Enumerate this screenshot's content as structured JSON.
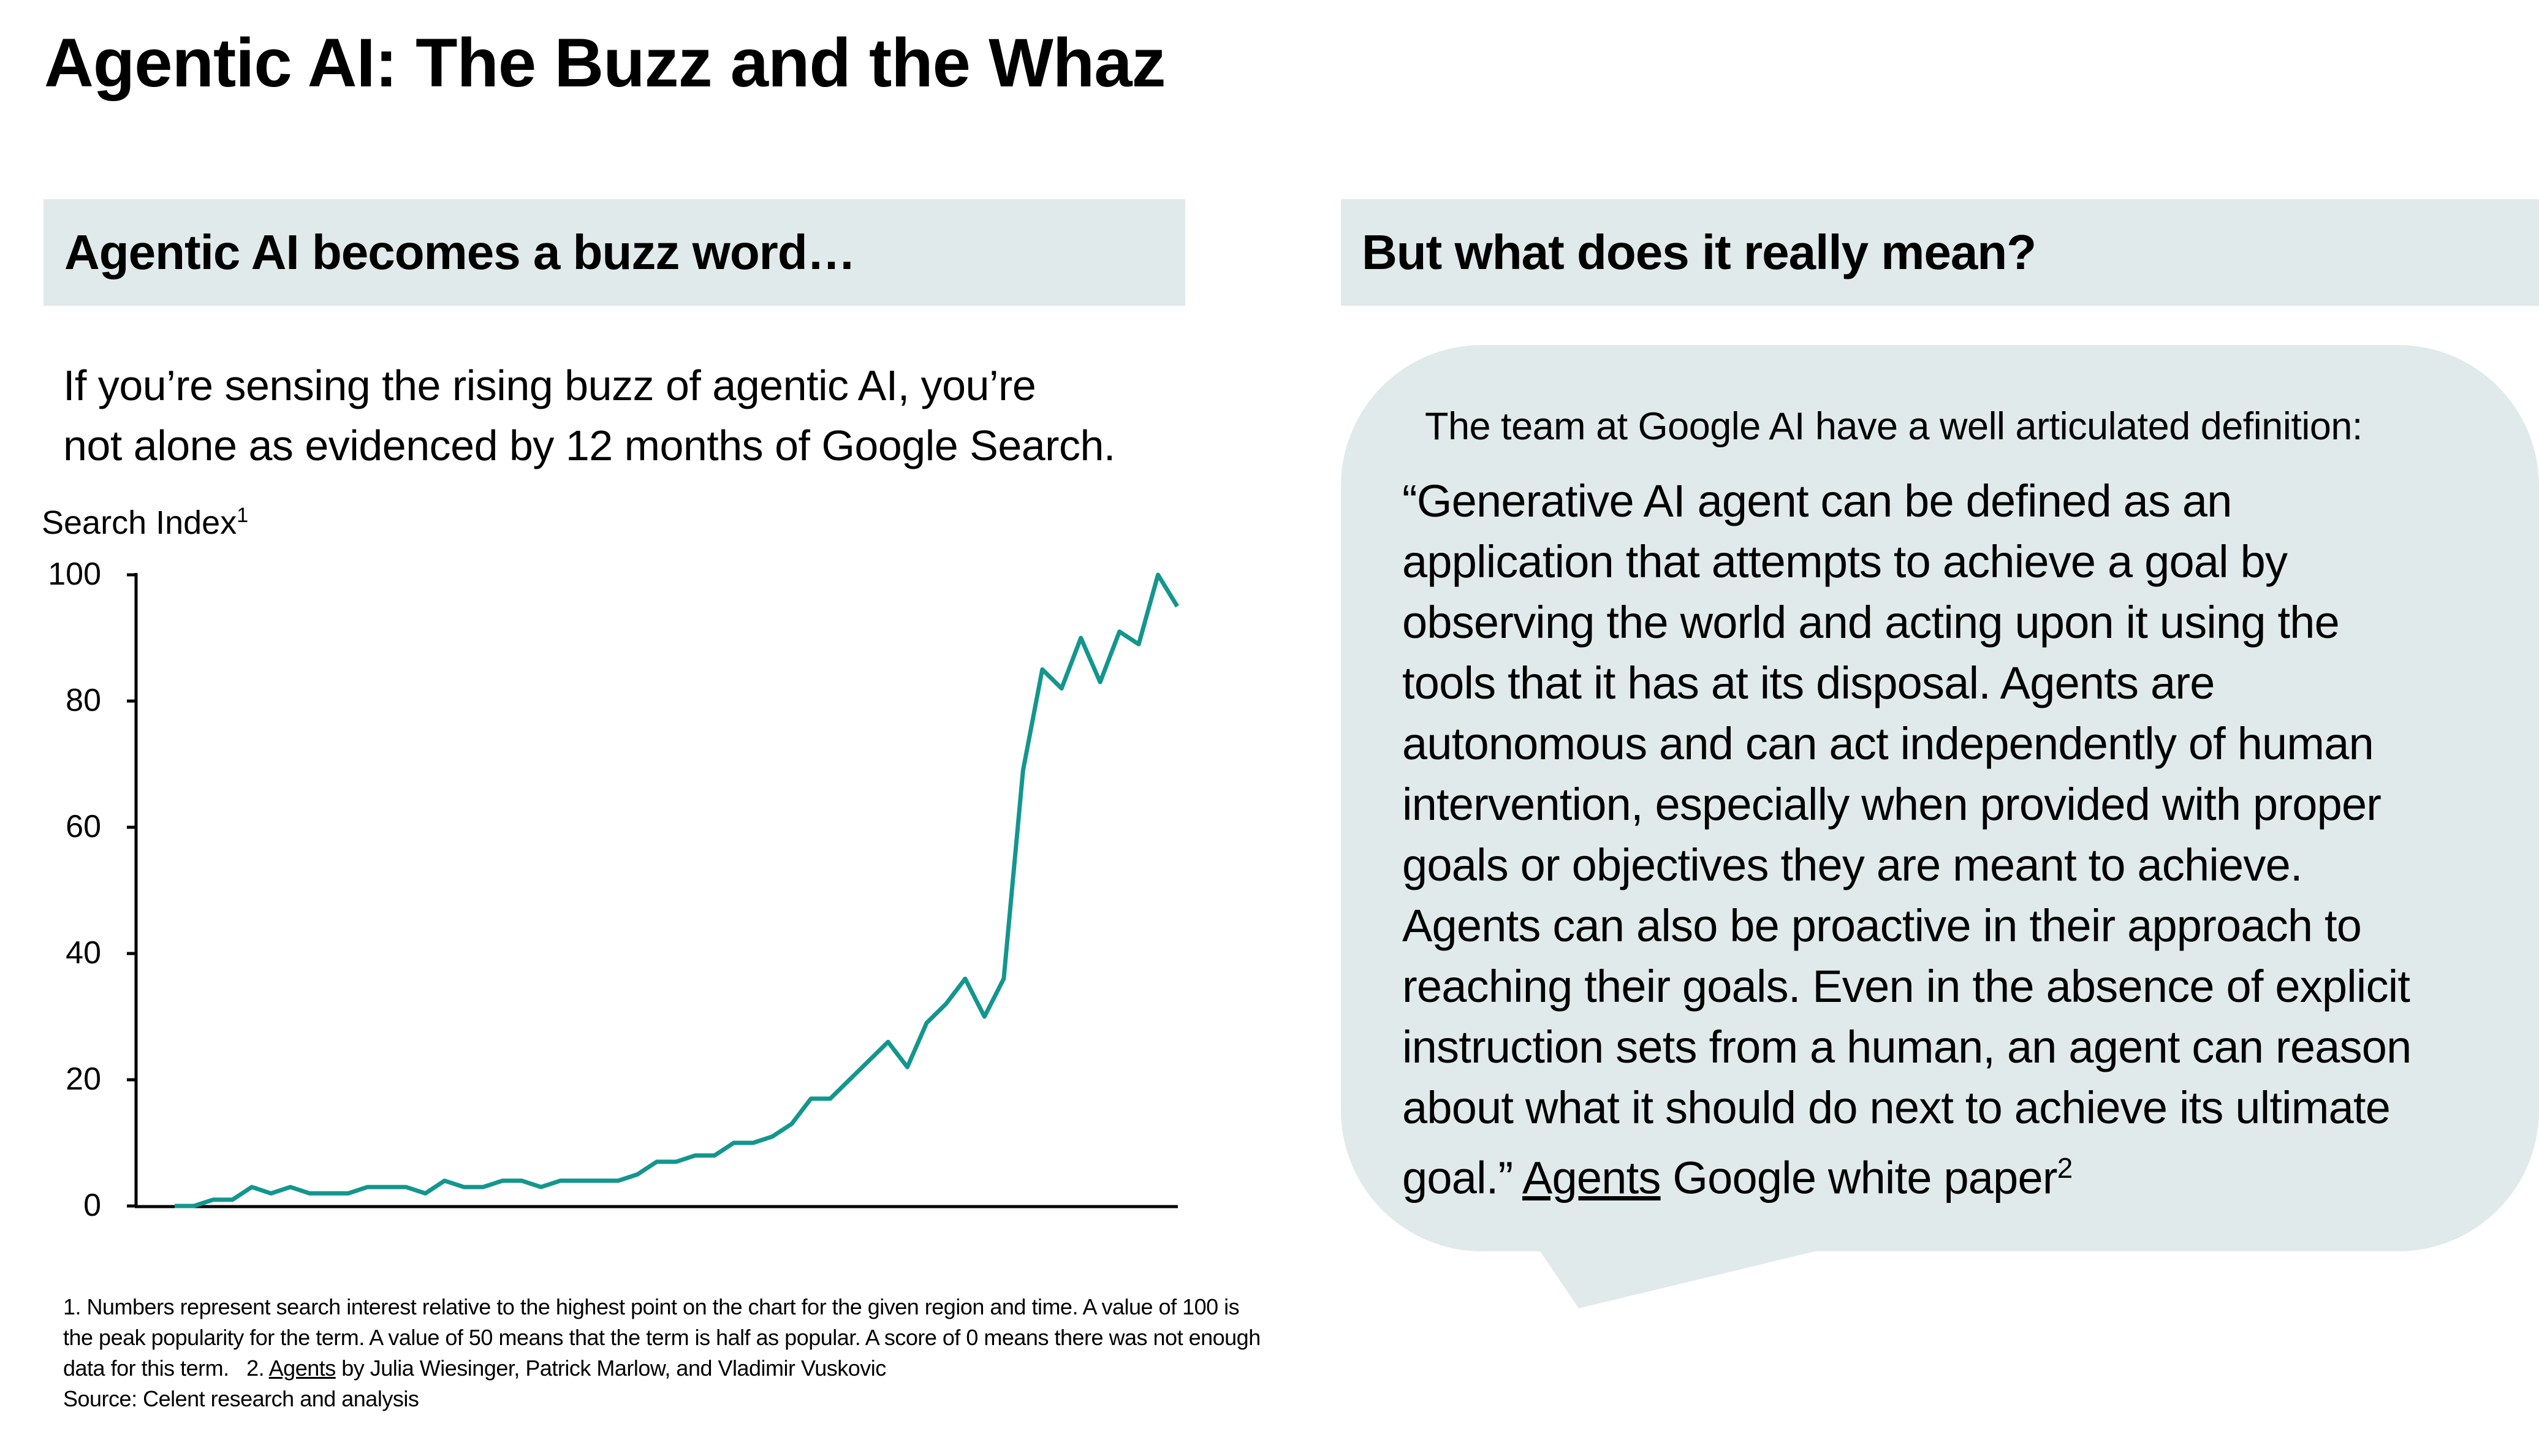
{
  "title": "Agentic AI:  The Buzz and the Whaz",
  "left_header": "Agentic AI becomes a buzz word…",
  "right_header": "But what does it really mean?",
  "intro_lines": [
    "If you’re sensing the rising buzz of agentic AI, you’re",
    "not alone as evidenced by 12 months of Google Search."
  ],
  "bubble": {
    "intro": "The team at Google AI have a well articulated definition:",
    "quote_lines": [
      "“Generative AI agent can be defined as an",
      "application that attempts to achieve a goal by",
      "observing the world and acting upon it using the",
      "tools that it has at its disposal. Agents are",
      "autonomous and can act independently of human",
      "intervention, especially when provided with proper",
      "goals or objectives they are meant to achieve.",
      "Agents can also be proactive in their approach to",
      "reaching their goals. Even in the absence of explicit",
      "instruction sets from a human, an agent can reason",
      "about what it should do next to achieve its ultimate"
    ],
    "last_line_start": "goal.” ",
    "link": "Agents",
    "last_line_end": " Google white paper",
    "sup": "2"
  },
  "footnotes": {
    "line1": "1. Numbers represent search interest relative to the highest point on the chart for the given region and time. A value of 100 is",
    "line2": "the peak popularity for the term. A value of 50 means that the term is half as popular. A score of 0 means there was not enough",
    "line3_start": "data for this term.   2. ",
    "line3_link": "Agents",
    "line3_end": " by Julia Wiesinger, Patrick Marlow, and Vladimir Vuskovic",
    "source": "Source: Celent research and analysis"
  },
  "chart_data": {
    "type": "line",
    "title": "",
    "ylabel": "Search Index",
    "ylabel_sup": "1",
    "xlabel": "",
    "ylim": [
      0,
      100
    ],
    "yticks": [
      "0",
      "20",
      "40",
      "60",
      "80",
      "100"
    ],
    "grid": false,
    "color": "#13968e",
    "series": [
      {
        "name": "Agentic AI",
        "values": [
          0,
          0,
          1,
          1,
          3,
          2,
          3,
          2,
          2,
          2,
          3,
          3,
          3,
          2,
          4,
          3,
          3,
          4,
          4,
          3,
          4,
          4,
          4,
          4,
          5,
          7,
          7,
          8,
          8,
          10,
          10,
          11,
          13,
          17,
          17,
          20,
          23,
          26,
          22,
          29,
          32,
          36,
          30,
          36,
          69,
          85,
          82,
          90,
          83,
          91,
          89,
          100,
          95
        ]
      }
    ]
  }
}
